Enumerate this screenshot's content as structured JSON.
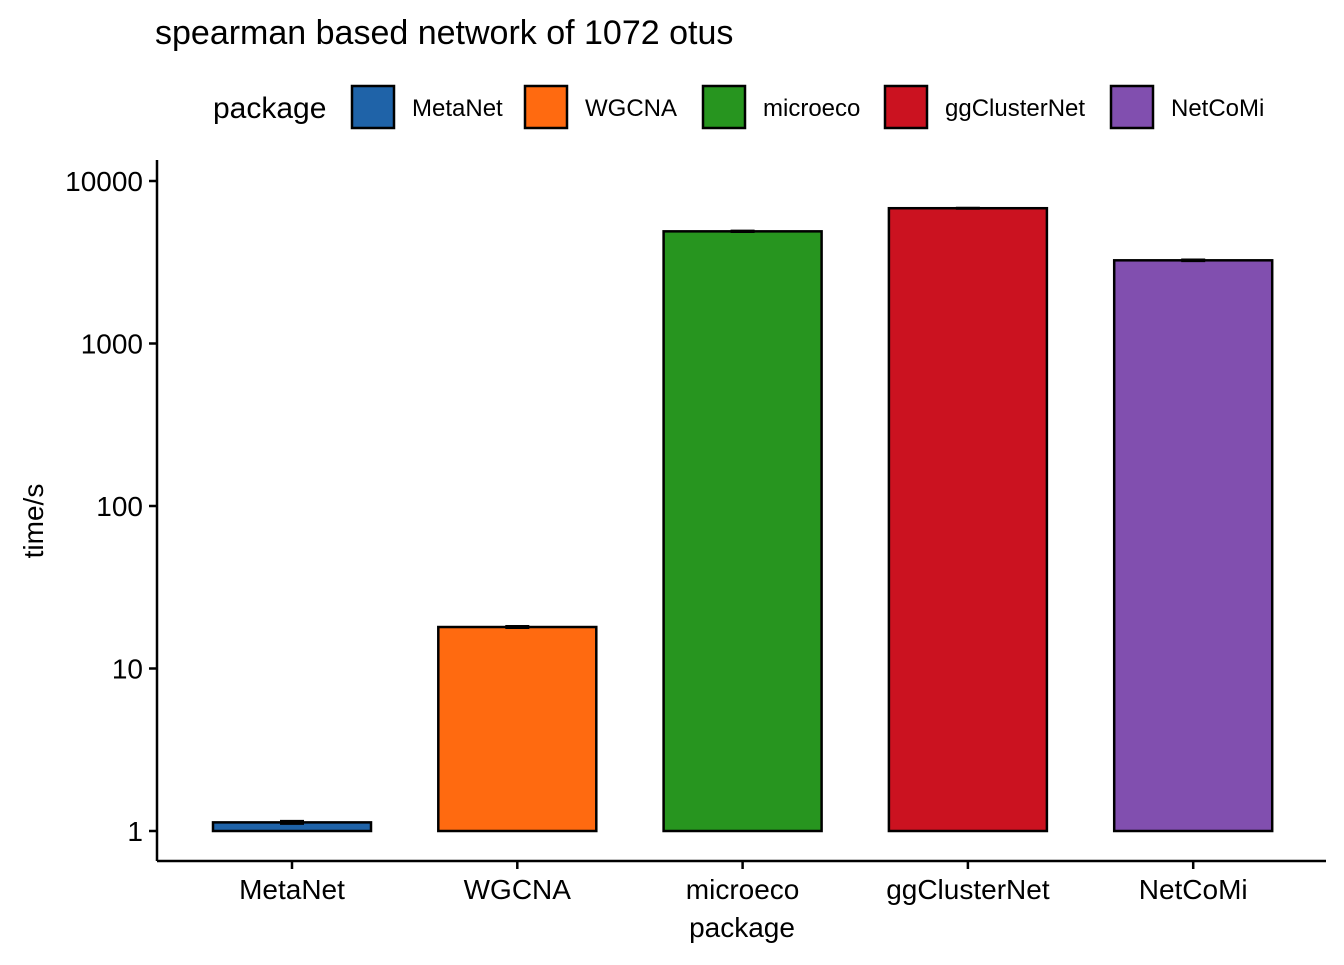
{
  "chart_data": {
    "type": "bar",
    "title": "spearman based network of 1072 otus",
    "xlabel": "package",
    "ylabel": "time/s",
    "y_scale": "log10",
    "ylim": [
      1,
      10000
    ],
    "yticks": [
      1,
      10,
      100,
      1000,
      10000
    ],
    "ytick_labels": [
      "1",
      "10",
      "100",
      "1000",
      "10000"
    ],
    "grid": false,
    "legend": {
      "title": "package",
      "placement": "top"
    },
    "categories": [
      "MetaNet",
      "WGCNA",
      "microeco",
      "ggClusterNet",
      "NetCoMi"
    ],
    "values": [
      1.13,
      18,
      4900,
      6800,
      3250
    ],
    "error": [
      0.02,
      0.2,
      30,
      25,
      25
    ],
    "colors": [
      "#1F63A8",
      "#FF6A10",
      "#27951F",
      "#CB1220",
      "#814FAF"
    ],
    "bar_outline": "#000000"
  }
}
